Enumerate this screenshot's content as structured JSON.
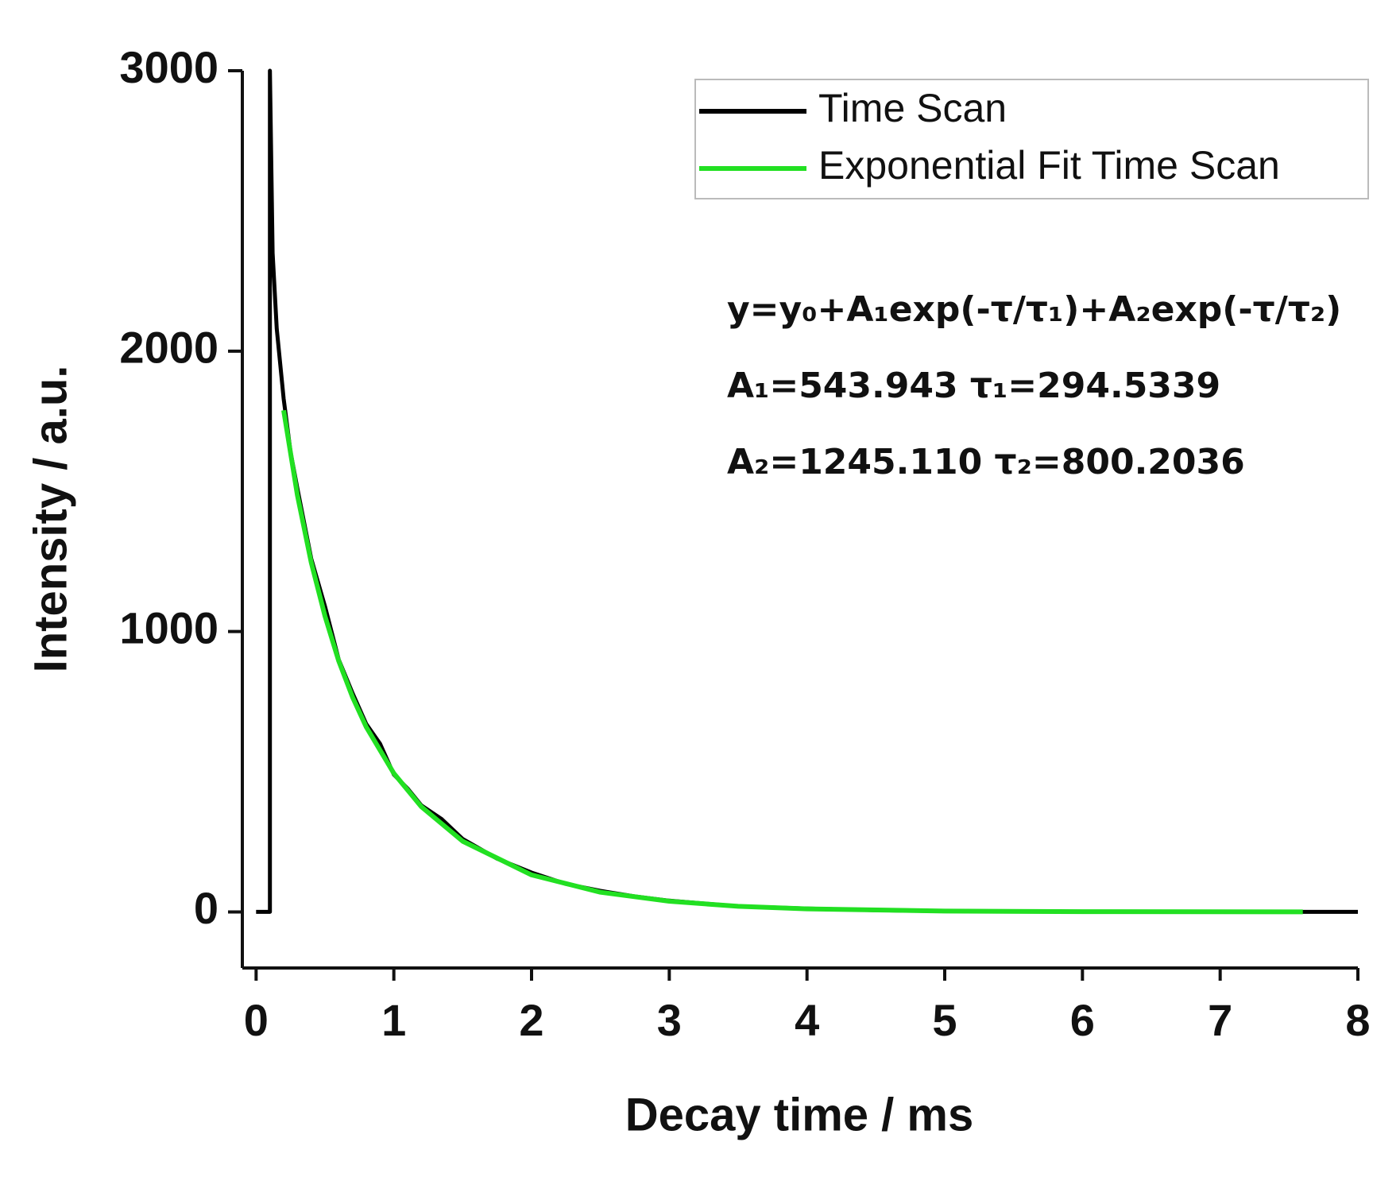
{
  "chart_data": {
    "type": "line",
    "x_label": "Decay time / ms",
    "y_label": "Intensity / a.u.",
    "xlim": [
      -0.1,
      8
    ],
    "ylim": [
      -200,
      3000
    ],
    "xticks": [
      0,
      1,
      2,
      3,
      4,
      5,
      6,
      7,
      8
    ],
    "yticks": [
      0,
      1000,
      2000,
      3000
    ],
    "legend_position": "upper right",
    "annotations": [
      "y=y₀+A₁exp(-τ/τ₁)+A₂exp(-τ/τ₂)",
      "A₁=543.943  τ₁=294.5339",
      "A₂=1245.110  τ₂=800.2036"
    ],
    "series": [
      {
        "name": "Time Scan",
        "color": "#000000",
        "x": [
          0,
          0.1,
          0.1,
          0.12,
          0.15,
          0.2,
          0.25,
          0.3,
          0.4,
          0.5,
          0.6,
          0.7,
          0.8,
          0.9,
          1.0,
          1.1,
          1.2,
          1.35,
          1.5,
          1.75,
          2.0,
          2.25,
          2.5,
          2.75,
          3.0,
          3.5,
          4.0,
          4.5,
          5.0,
          6.0,
          7.0,
          7.6,
          8.0
        ],
        "values": [
          0,
          0,
          3000,
          2350,
          2080,
          1830,
          1640,
          1510,
          1260,
          1090,
          900,
          780,
          670,
          600,
          490,
          440,
          380,
          330,
          260,
          190,
          140,
          100,
          75,
          55,
          40,
          20,
          12,
          6,
          3,
          1,
          0,
          0,
          0
        ]
      },
      {
        "name": "Exponential Fit Time Scan",
        "color": "#22e022",
        "x": [
          0.2,
          0.3,
          0.4,
          0.5,
          0.6,
          0.7,
          0.8,
          1.0,
          1.2,
          1.5,
          2.0,
          2.5,
          3.0,
          3.5,
          4.0,
          5.0,
          6.0,
          7.6
        ],
        "values": [
          1789,
          1486,
          1246,
          1055,
          895,
          766,
          659,
          494,
          375,
          252,
          132,
          70,
          38,
          20,
          11,
          3,
          1,
          0
        ]
      }
    ]
  }
}
